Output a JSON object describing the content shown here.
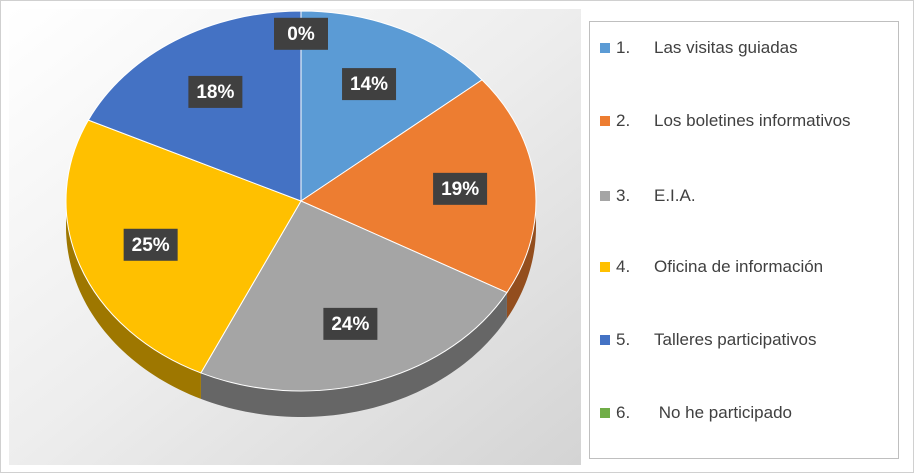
{
  "chart_data": {
    "type": "pie",
    "categories": [
      "1.\tLas visitas guiadas",
      "2.\tLos boletines informativos",
      "3.\tE.I.A.",
      "4.\tOficina de información",
      "5.\tTalleres participativos",
      "6.\t No he participado"
    ],
    "values": [
      14,
      19,
      24,
      25,
      18,
      0
    ],
    "value_labels": [
      "14%",
      "19%",
      "24%",
      "25%",
      "18%",
      "0%"
    ],
    "colors": [
      "#5b9bd5",
      "#ed7d31",
      "#a5a5a5",
      "#ffc000",
      "#4472c4",
      "#70ad47"
    ],
    "legend": "right"
  }
}
